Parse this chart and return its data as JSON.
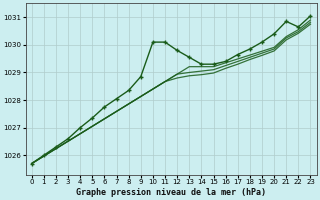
{
  "title": "Graphe pression niveau de la mer (hPa)",
  "background_color": "#cceef0",
  "grid_color": "#b0cccc",
  "line_color": "#1a5c1a",
  "xlim": [
    -0.5,
    23.5
  ],
  "ylim": [
    1025.3,
    1031.5
  ],
  "yticks": [
    1026,
    1027,
    1028,
    1029,
    1030,
    1031
  ],
  "xtick_labels": [
    "0",
    "1",
    "2",
    "3",
    "4",
    "5",
    "6",
    "7",
    "8",
    "9",
    "10",
    "11",
    "12",
    "13",
    "14",
    "15",
    "16",
    "17",
    "18",
    "19",
    "20",
    "21",
    "22",
    "23"
  ],
  "smooth_lines": [
    [
      1025.7,
      1025.97,
      1026.24,
      1026.51,
      1026.78,
      1027.05,
      1027.32,
      1027.59,
      1027.86,
      1028.13,
      1028.4,
      1028.67,
      1028.94,
      1029.21,
      1029.21,
      1029.21,
      1029.35,
      1029.49,
      1029.63,
      1029.77,
      1029.91,
      1030.3,
      1030.55,
      1030.9
    ],
    [
      1025.7,
      1025.97,
      1026.24,
      1026.51,
      1026.78,
      1027.05,
      1027.32,
      1027.59,
      1027.86,
      1028.13,
      1028.4,
      1028.67,
      1028.94,
      1029.0,
      1029.05,
      1029.1,
      1029.25,
      1029.4,
      1029.55,
      1029.7,
      1029.85,
      1030.25,
      1030.48,
      1030.82
    ],
    [
      1025.7,
      1025.97,
      1026.24,
      1026.51,
      1026.78,
      1027.05,
      1027.32,
      1027.59,
      1027.86,
      1028.13,
      1028.4,
      1028.67,
      1028.8,
      1028.88,
      1028.92,
      1028.98,
      1029.15,
      1029.3,
      1029.47,
      1029.62,
      1029.78,
      1030.18,
      1030.42,
      1030.75
    ]
  ],
  "main_line": {
    "x": [
      0,
      1,
      2,
      3,
      4,
      5,
      6,
      7,
      8,
      9,
      10,
      11,
      12,
      13,
      14,
      15,
      16,
      17,
      18,
      19,
      20,
      21,
      22,
      23
    ],
    "y": [
      1025.7,
      1026.0,
      1026.3,
      1026.6,
      1027.0,
      1027.35,
      1027.75,
      1028.05,
      1028.35,
      1028.85,
      1030.1,
      1030.1,
      1029.8,
      1029.55,
      1029.3,
      1029.3,
      1029.4,
      1029.65,
      1029.85,
      1030.1,
      1030.4,
      1030.85,
      1030.65,
      1031.05
    ]
  }
}
